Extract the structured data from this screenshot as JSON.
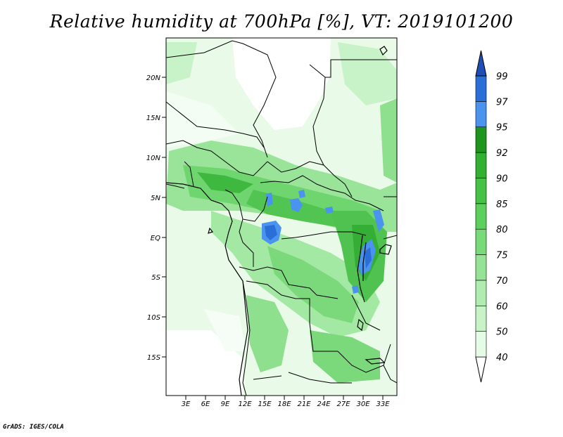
{
  "title": "Relative humidity at 700hPa [%], VT: 2019101200",
  "credit": "GrADS: IGES/COLA",
  "map": {
    "lat_labels": [
      "20N",
      "15N",
      "10N",
      "5N",
      "EQ",
      "5S",
      "10S",
      "15S"
    ],
    "lon_labels": [
      "3E",
      "6E",
      "9E",
      "12E",
      "15E",
      "18E",
      "21E",
      "24E",
      "27E",
      "30E",
      "33E"
    ]
  },
  "colorbar": {
    "levels": [
      "40",
      "50",
      "60",
      "70",
      "75",
      "80",
      "85",
      "90",
      "92",
      "95",
      "97",
      "99"
    ],
    "colors": [
      "#ffffff",
      "#e6fbe6",
      "#c8f2c8",
      "#b0ecb0",
      "#96e396",
      "#78da78",
      "#5ccf5c",
      "#46c246",
      "#32b032",
      "#1e961e",
      "#4a94f0",
      "#2a6fd8",
      "#1f4fb5"
    ]
  }
}
